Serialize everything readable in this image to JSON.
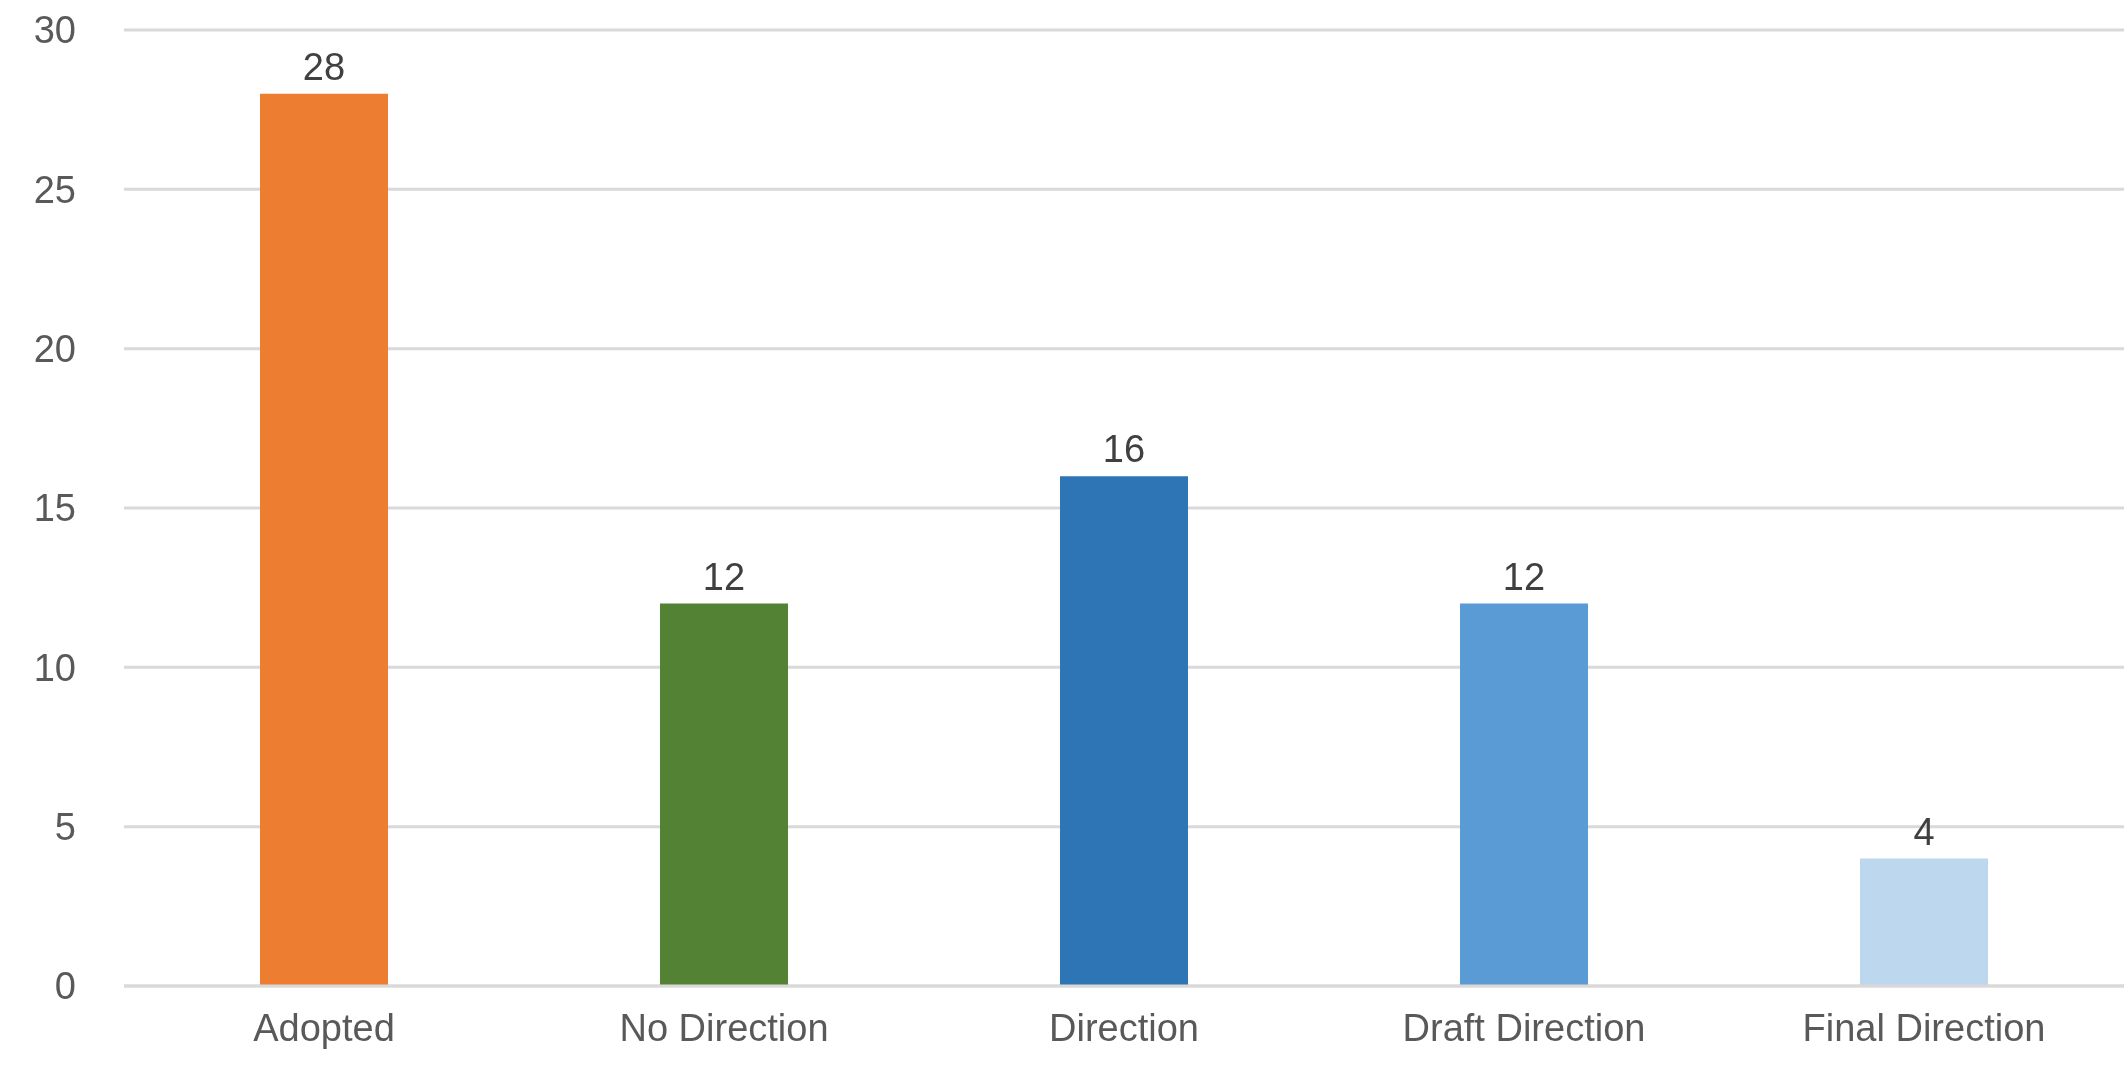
{
  "chart_data": {
    "type": "bar",
    "categories": [
      "Adopted",
      "No Direction",
      "Direction",
      "Draft Direction",
      "Final Direction"
    ],
    "values": [
      28,
      12,
      16,
      12,
      4
    ],
    "colors": [
      "#ed7d31",
      "#548235",
      "#2e75b6",
      "#5b9bd5",
      "#bdd7ee"
    ],
    "ylim": [
      0,
      30
    ],
    "yticks": [
      0,
      5,
      10,
      15,
      20,
      25,
      30
    ],
    "grid": "y",
    "data_labels": true
  }
}
